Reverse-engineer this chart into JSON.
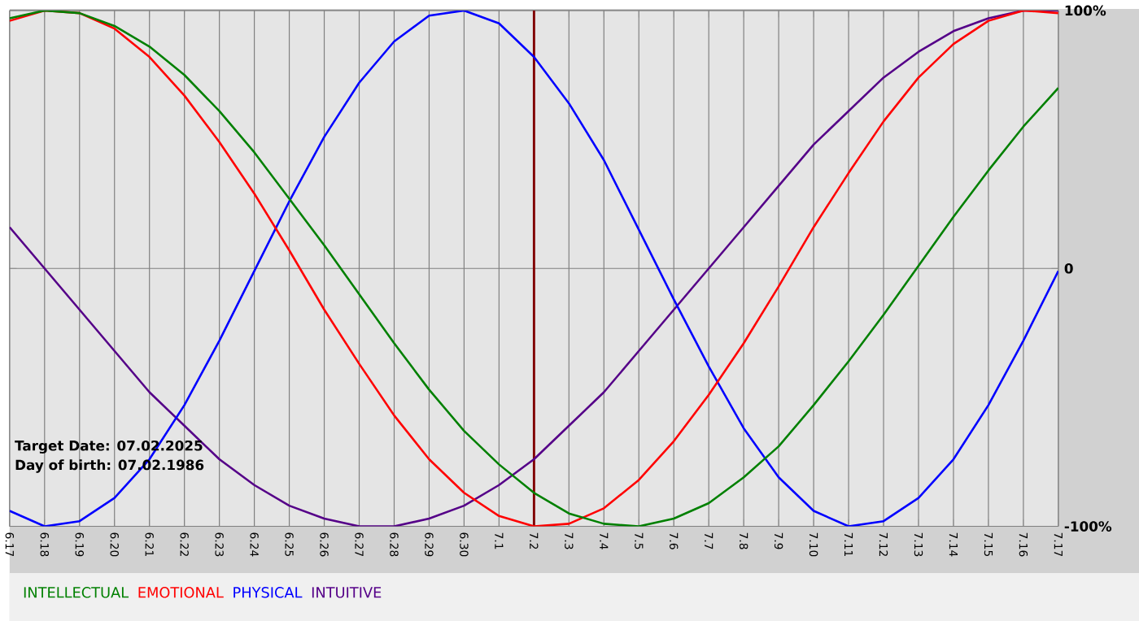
{
  "chart_data": {
    "type": "line",
    "categories": [
      "6.17",
      "6.18",
      "6.19",
      "6.20",
      "6.21",
      "6.22",
      "6.23",
      "6.24",
      "6.25",
      "6.26",
      "6.27",
      "6.28",
      "6.29",
      "6.30",
      "7.1",
      "7.2",
      "7.3",
      "7.4",
      "7.5",
      "7.6",
      "7.7",
      "7.8",
      "7.9",
      "7.10",
      "7.11",
      "7.12",
      "7.13",
      "7.14",
      "7.15",
      "7.16",
      "7.17"
    ],
    "series": [
      {
        "name": "INTELLECTUAL",
        "color": "#008000",
        "values": [
          97,
          100,
          99,
          94,
          86,
          75,
          61,
          45,
          27,
          9,
          -10,
          -29,
          -47,
          -63,
          -76,
          -87,
          -95,
          -99,
          -100,
          -97,
          -91,
          -81,
          -69,
          -53,
          -36,
          -18,
          1,
          20,
          38,
          55,
          70
        ]
      },
      {
        "name": "EMOTIONAL",
        "color": "#ff0000",
        "values": [
          96,
          100,
          99,
          93,
          82,
          67,
          49,
          29,
          7,
          -16,
          -37,
          -57,
          -74,
          -87,
          -96,
          -100,
          -99,
          -93,
          -82,
          -67,
          -49,
          -29,
          -7,
          16,
          37,
          57,
          74,
          87,
          96,
          100,
          99
        ]
      },
      {
        "name": "PHYSICAL",
        "color": "#0000ff",
        "values": [
          -94,
          -100,
          -98,
          -89,
          -74,
          -53,
          -28,
          -1,
          26,
          51,
          72,
          88,
          98,
          100,
          95,
          82,
          64,
          42,
          15,
          -12,
          -38,
          -62,
          -81,
          -94,
          -100,
          -98,
          -89,
          -74,
          -53,
          -28,
          -1
        ]
      },
      {
        "name": "INTUITIVE",
        "color": "#550088",
        "values": [
          16,
          0,
          -16,
          -32,
          -48,
          -61,
          -74,
          -84,
          -92,
          -97,
          -100,
          -100,
          -97,
          -92,
          -84,
          -74,
          -61,
          -48,
          -32,
          -16,
          0,
          16,
          32,
          48,
          61,
          74,
          84,
          92,
          97,
          100,
          100
        ]
      }
    ],
    "ylim": [
      -100,
      100
    ],
    "yticks": [
      {
        "value": -100,
        "label": "-100%"
      },
      0,
      {
        "value": 100,
        "label": "100%"
      }
    ],
    "grid": true,
    "legend": "bottom",
    "marker": "none",
    "line_style": "solid",
    "ref_lines": [
      {
        "axis": "x",
        "value": "7.2",
        "color": "#800000"
      }
    ],
    "annotations": [
      "Target Date: 07.02.2025",
      "Day of birth: 07.02.1986"
    ]
  }
}
